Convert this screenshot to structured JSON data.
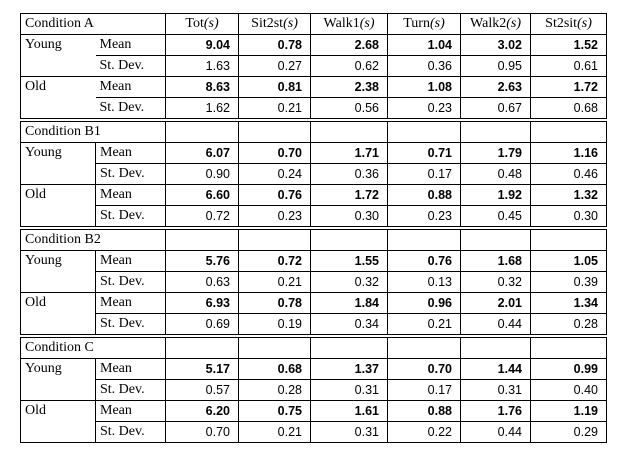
{
  "columns": [
    {
      "name": "Tot",
      "unit": "(s)"
    },
    {
      "name": "Sit2st",
      "unit": "(s)"
    },
    {
      "name": "Walk1",
      "unit": "(s)"
    },
    {
      "name": "Turn",
      "unit": "(s)"
    },
    {
      "name": "Walk2",
      "unit": "(s)"
    },
    {
      "name": "St2sit",
      "unit": "(s)"
    }
  ],
  "sections": [
    {
      "title": "Condition A",
      "groups": [
        {
          "label": "Young",
          "rows": [
            {
              "stat": "Mean",
              "values": [
                "9.04",
                "0.78",
                "2.68",
                "1.04",
                "3.02",
                "1.52"
              ]
            },
            {
              "stat": "St. Dev.",
              "values": [
                "1.63",
                "0.27",
                "0.62",
                "0.36",
                "0.95",
                "0.61"
              ]
            }
          ]
        },
        {
          "label": "Old",
          "rows": [
            {
              "stat": "Mean",
              "values": [
                "8.63",
                "0.81",
                "2.38",
                "1.08",
                "2.63",
                "1.72"
              ]
            },
            {
              "stat": "St. Dev.",
              "values": [
                "1.62",
                "0.21",
                "0.56",
                "0.23",
                "0.67",
                "0.68"
              ]
            }
          ]
        }
      ]
    },
    {
      "title": "Condition B1",
      "groups": [
        {
          "label": "Young",
          "rows": [
            {
              "stat": "Mean",
              "values": [
                "6.07",
                "0.70",
                "1.71",
                "0.71",
                "1.79",
                "1.16"
              ]
            },
            {
              "stat": "St. Dev.",
              "values": [
                "0.90",
                "0.24",
                "0.36",
                "0.17",
                "0.48",
                "0.46"
              ]
            }
          ]
        },
        {
          "label": "Old",
          "rows": [
            {
              "stat": "Mean",
              "values": [
                "6.60",
                "0.76",
                "1.72",
                "0.88",
                "1.92",
                "1.32"
              ]
            },
            {
              "stat": "St. Dev.",
              "values": [
                "0.72",
                "0.23",
                "0.30",
                "0.23",
                "0.45",
                "0.30"
              ]
            }
          ]
        }
      ]
    },
    {
      "title": "Condition B2",
      "groups": [
        {
          "label": "Young",
          "rows": [
            {
              "stat": "Mean",
              "values": [
                "5.76",
                "0.72",
                "1.55",
                "0.76",
                "1.68",
                "1.05"
              ]
            },
            {
              "stat": "St. Dev.",
              "values": [
                "0.63",
                "0.21",
                "0.32",
                "0.13",
                "0.32",
                "0.39"
              ]
            }
          ]
        },
        {
          "label": "Old",
          "rows": [
            {
              "stat": "Mean",
              "values": [
                "6.93",
                "0.78",
                "1.84",
                "0.96",
                "2.01",
                "1.34"
              ]
            },
            {
              "stat": "St. Dev.",
              "values": [
                "0.69",
                "0.19",
                "0.34",
                "0.21",
                "0.44",
                "0.28"
              ]
            }
          ]
        }
      ]
    },
    {
      "title": "Condition C",
      "groups": [
        {
          "label": "Young",
          "rows": [
            {
              "stat": "Mean",
              "values": [
                "5.17",
                "0.68",
                "1.37",
                "0.70",
                "1.44",
                "0.99"
              ]
            },
            {
              "stat": "St. Dev.",
              "values": [
                "0.57",
                "0.28",
                "0.31",
                "0.17",
                "0.31",
                "0.40"
              ]
            }
          ]
        },
        {
          "label": "Old",
          "rows": [
            {
              "stat": "Mean",
              "values": [
                "6.20",
                "0.75",
                "1.61",
                "0.88",
                "1.76",
                "1.19"
              ]
            },
            {
              "stat": "St. Dev.",
              "values": [
                "0.70",
                "0.21",
                "0.31",
                "0.22",
                "0.44",
                "0.29"
              ]
            }
          ]
        }
      ]
    }
  ]
}
